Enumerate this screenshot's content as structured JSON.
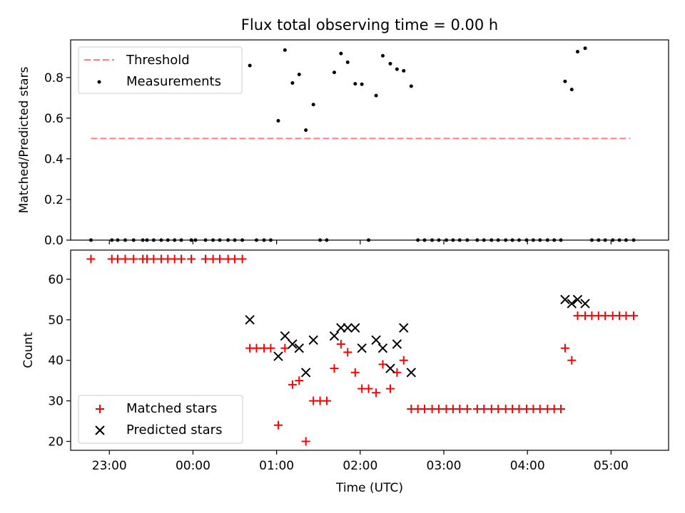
{
  "chart_data": {
    "title": "Flux total observing time = 0.00 h",
    "xlabel": "Time (UTC)",
    "x_unit": "hours (UTC; values after 24 are past midnight)",
    "x_range": [
      22.537,
      29.688
    ],
    "x_ticks": [
      {
        "value": 23,
        "label": "23:00"
      },
      {
        "value": 24,
        "label": "00:00"
      },
      {
        "value": 25,
        "label": "01:00"
      },
      {
        "value": 26,
        "label": "02:00"
      },
      {
        "value": 27,
        "label": "03:00"
      },
      {
        "value": 28,
        "label": "04:00"
      },
      {
        "value": 29,
        "label": "05:00"
      }
    ],
    "panels": [
      {
        "type": "scatter",
        "ylabel": "Matched/Predicted stars",
        "ylim": [
          0,
          0.985
        ],
        "y_ticks": [
          0.0,
          0.2,
          0.4,
          0.6,
          0.8
        ],
        "legend": "upper-left",
        "series": [
          {
            "name": "Threshold",
            "kind": "line",
            "style": "dashed",
            "color": "#ff7f7f",
            "points": [
              [
                22.78,
                0.5
              ],
              [
                29.23,
                0.5
              ]
            ]
          },
          {
            "name": "Measurements",
            "kind": "scatter",
            "marker": "dot",
            "color": "#000000",
            "points": [
              [
                22.78,
                0
              ],
              [
                23.03,
                0
              ],
              [
                23.1,
                0
              ],
              [
                23.19,
                0
              ],
              [
                23.29,
                0
              ],
              [
                23.4,
                0
              ],
              [
                23.45,
                0
              ],
              [
                23.53,
                0
              ],
              [
                23.62,
                0
              ],
              [
                23.7,
                0
              ],
              [
                23.78,
                0
              ],
              [
                23.86,
                0
              ],
              [
                23.98,
                0
              ],
              [
                24.03,
                0
              ],
              [
                24.15,
                0
              ],
              [
                24.24,
                0
              ],
              [
                24.32,
                0
              ],
              [
                24.42,
                0
              ],
              [
                24.5,
                0
              ],
              [
                24.59,
                0
              ],
              [
                24.68,
                0.859
              ],
              [
                24.76,
                0
              ],
              [
                24.85,
                0
              ],
              [
                24.93,
                0
              ],
              [
                25.02,
                0.587
              ],
              [
                25.1,
                0.935
              ],
              [
                25.19,
                0.773
              ],
              [
                25.27,
                0.815
              ],
              [
                25.35,
                0.541
              ],
              [
                25.44,
                0.667
              ],
              [
                25.52,
                0
              ],
              [
                25.6,
                0
              ],
              [
                25.69,
                0.825
              ],
              [
                25.77,
                0.918
              ],
              [
                25.85,
                0.875
              ],
              [
                25.94,
                0.769
              ],
              [
                26.02,
                0.767
              ],
              [
                26.1,
                0
              ],
              [
                26.19,
                0.711
              ],
              [
                26.27,
                0.907
              ],
              [
                26.36,
                0.868
              ],
              [
                26.44,
                0.841
              ],
              [
                26.52,
                0.833
              ],
              [
                26.61,
                0.757
              ],
              [
                26.69,
                0
              ],
              [
                26.77,
                0
              ],
              [
                26.86,
                0
              ],
              [
                26.94,
                0
              ],
              [
                27.03,
                0
              ],
              [
                27.11,
                0
              ],
              [
                27.19,
                0
              ],
              [
                27.28,
                0
              ],
              [
                27.4,
                0
              ],
              [
                27.48,
                0
              ],
              [
                27.57,
                0
              ],
              [
                27.65,
                0
              ],
              [
                27.74,
                0
              ],
              [
                27.82,
                0
              ],
              [
                27.9,
                0
              ],
              [
                27.99,
                0
              ],
              [
                28.07,
                0
              ],
              [
                28.15,
                0
              ],
              [
                28.24,
                0
              ],
              [
                28.32,
                0
              ],
              [
                28.4,
                0
              ],
              [
                28.45,
                0.781
              ],
              [
                28.53,
                0.741
              ],
              [
                28.6,
                0.927
              ],
              [
                28.69,
                0.944
              ],
              [
                28.77,
                0
              ],
              [
                28.85,
                0
              ],
              [
                28.93,
                0
              ],
              [
                29.02,
                0
              ],
              [
                29.1,
                0
              ],
              [
                29.18,
                0
              ],
              [
                29.27,
                0
              ]
            ]
          }
        ]
      },
      {
        "type": "scatter",
        "ylabel": "Count",
        "ylim": [
          17.8,
          67.2
        ],
        "y_ticks": [
          20,
          30,
          40,
          50,
          60
        ],
        "legend": "lower-left",
        "series": [
          {
            "name": "Matched stars",
            "kind": "scatter",
            "marker": "plus",
            "color": "#ff0000",
            "points": [
              [
                22.78,
                65
              ],
              [
                23.03,
                65
              ],
              [
                23.1,
                65
              ],
              [
                23.19,
                65
              ],
              [
                23.29,
                65
              ],
              [
                23.4,
                65
              ],
              [
                23.45,
                65
              ],
              [
                23.53,
                65
              ],
              [
                23.62,
                65
              ],
              [
                23.7,
                65
              ],
              [
                23.78,
                65
              ],
              [
                23.86,
                65
              ],
              [
                23.98,
                65
              ],
              [
                24.15,
                65
              ],
              [
                24.24,
                65
              ],
              [
                24.32,
                65
              ],
              [
                24.42,
                65
              ],
              [
                24.5,
                65
              ],
              [
                24.59,
                65
              ],
              [
                24.68,
                43
              ],
              [
                24.76,
                43
              ],
              [
                24.85,
                43
              ],
              [
                24.93,
                43
              ],
              [
                25.02,
                24
              ],
              [
                25.1,
                43
              ],
              [
                25.19,
                34
              ],
              [
                25.27,
                35
              ],
              [
                25.35,
                20
              ],
              [
                25.44,
                30
              ],
              [
                25.52,
                30
              ],
              [
                25.6,
                30
              ],
              [
                25.69,
                38
              ],
              [
                25.77,
                44
              ],
              [
                25.85,
                42
              ],
              [
                25.94,
                37
              ],
              [
                26.02,
                33
              ],
              [
                26.1,
                33
              ],
              [
                26.19,
                32
              ],
              [
                26.27,
                39
              ],
              [
                26.36,
                33
              ],
              [
                26.44,
                37
              ],
              [
                26.52,
                40
              ],
              [
                26.61,
                28
              ],
              [
                26.69,
                28
              ],
              [
                26.77,
                28
              ],
              [
                26.86,
                28
              ],
              [
                26.94,
                28
              ],
              [
                27.03,
                28
              ],
              [
                27.11,
                28
              ],
              [
                27.19,
                28
              ],
              [
                27.28,
                28
              ],
              [
                27.4,
                28
              ],
              [
                27.48,
                28
              ],
              [
                27.57,
                28
              ],
              [
                27.65,
                28
              ],
              [
                27.74,
                28
              ],
              [
                27.82,
                28
              ],
              [
                27.9,
                28
              ],
              [
                27.99,
                28
              ],
              [
                28.07,
                28
              ],
              [
                28.15,
                28
              ],
              [
                28.24,
                28
              ],
              [
                28.32,
                28
              ],
              [
                28.4,
                28
              ],
              [
                28.45,
                43
              ],
              [
                28.53,
                40
              ],
              [
                28.6,
                51
              ],
              [
                28.69,
                51
              ],
              [
                28.77,
                51
              ],
              [
                28.85,
                51
              ],
              [
                28.93,
                51
              ],
              [
                29.02,
                51
              ],
              [
                29.1,
                51
              ],
              [
                29.18,
                51
              ],
              [
                29.27,
                51
              ]
            ]
          },
          {
            "name": "Predicted stars",
            "kind": "scatter",
            "marker": "x",
            "color": "#000000",
            "points": [
              [
                24.68,
                50
              ],
              [
                25.02,
                41
              ],
              [
                25.1,
                46
              ],
              [
                25.19,
                44
              ],
              [
                25.27,
                43
              ],
              [
                25.35,
                37
              ],
              [
                25.44,
                45
              ],
              [
                25.69,
                46
              ],
              [
                25.77,
                48
              ],
              [
                25.85,
                48
              ],
              [
                25.94,
                48
              ],
              [
                26.02,
                43
              ],
              [
                26.19,
                45
              ],
              [
                26.27,
                43
              ],
              [
                26.36,
                38
              ],
              [
                26.44,
                44
              ],
              [
                26.52,
                48
              ],
              [
                26.61,
                37
              ],
              [
                28.45,
                55
              ],
              [
                28.53,
                54
              ],
              [
                28.6,
                55
              ],
              [
                28.69,
                54
              ]
            ]
          }
        ]
      }
    ]
  }
}
